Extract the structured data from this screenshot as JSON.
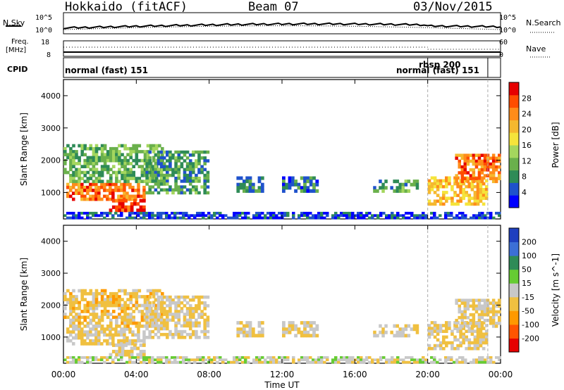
{
  "header": {
    "radar": "Hokkaido (fitACF)",
    "beam": "Beam 07",
    "date": "03/Nov/2015"
  },
  "side_labels": {
    "nsky": "N.Sky",
    "nsky_hi": "10^5",
    "nsky_lo": "10^0",
    "nsearch": "N.Search",
    "nsearch_hi": "10^5",
    "nsearch_lo": "10^0",
    "freq": "Freq.",
    "freq_unit": "[MHz]",
    "freq_hi": "18",
    "freq_lo": "8",
    "nave": "Nave",
    "nave_hi": "60",
    "nave_lo": "0",
    "cpid": "CPID"
  },
  "cpid_modes": [
    {
      "label": "normal (fast) 151",
      "start_hour": 0.0
    },
    {
      "label": "rbsp 200",
      "start_hour": 20.0
    },
    {
      "label": "normal (fast) 151",
      "start_hour": 23.3
    }
  ],
  "x_axis": {
    "label": "Time UT",
    "ticks": [
      "00:00",
      "04:00",
      "08:00",
      "12:00",
      "16:00",
      "20:00",
      "00:00"
    ],
    "tick_hours": [
      0,
      4,
      8,
      12,
      16,
      20,
      24
    ],
    "range": [
      0,
      24
    ]
  },
  "y_axis": {
    "label": "Slant Range [km]",
    "ticks": [
      "1000",
      "2000",
      "3000",
      "4000"
    ],
    "tick_values": [
      1000,
      2000,
      3000,
      4000
    ],
    "range": [
      180,
      4500
    ]
  },
  "power_colorbar": {
    "title": "Power [dB]",
    "labels": [
      "4",
      "8",
      "12",
      "16",
      "20",
      "24",
      "28"
    ],
    "colors": [
      "#0000ff",
      "#1f52cc",
      "#2e8b57",
      "#6ab04c",
      "#a4d65e",
      "#f5e43b",
      "#f5b82f",
      "#ff8c1a",
      "#ff4d00",
      "#e60000"
    ]
  },
  "velocity_colorbar": {
    "title": "Velocity [m s^-1]",
    "labels": [
      "200",
      "100",
      "50",
      "15",
      "-15",
      "-50",
      "-100",
      "-200"
    ],
    "colors": [
      "#1f3fbf",
      "#3c6fd6",
      "#2e8b57",
      "#66cc33",
      "#c8c8c8",
      "#f0c040",
      "#ff9900",
      "#ff5500",
      "#e60000"
    ]
  },
  "chart_data": {
    "type": "heatmap",
    "panels": [
      "power",
      "velocity"
    ],
    "mode_change_hours": [
      20.0,
      23.3
    ],
    "regions": [
      {
        "t0": 0.0,
        "t1": 4.5,
        "r0": 750,
        "r1": 1300,
        "power": 24,
        "velocity": -15
      },
      {
        "t0": 2.5,
        "t1": 4.5,
        "r0": 400,
        "r1": 800,
        "power": 28,
        "velocity": -15
      },
      {
        "t0": 0.0,
        "t1": 5.5,
        "r0": 1300,
        "r1": 2500,
        "power": 12,
        "velocity": -30
      },
      {
        "t0": 4.5,
        "t1": 8.0,
        "r0": 950,
        "r1": 2300,
        "power": 10,
        "velocity": -15
      },
      {
        "t0": 9.5,
        "t1": 11.0,
        "r0": 1000,
        "r1": 1500,
        "power": 9,
        "velocity": -15
      },
      {
        "t0": 12.0,
        "t1": 14.0,
        "r0": 1000,
        "r1": 1500,
        "power": 8,
        "velocity": -15
      },
      {
        "t0": 17.0,
        "t1": 19.5,
        "r0": 1000,
        "r1": 1400,
        "power": 11,
        "velocity": -15
      },
      {
        "t0": 20.0,
        "t1": 23.3,
        "r0": 600,
        "r1": 1500,
        "power": 20,
        "velocity": -15
      },
      {
        "t0": 21.5,
        "t1": 24.0,
        "r0": 1300,
        "r1": 2200,
        "power": 24,
        "velocity": -15
      },
      {
        "t0": 0.0,
        "t1": 24.0,
        "r0": 180,
        "r1": 400,
        "power": 6,
        "velocity": 0
      }
    ]
  }
}
